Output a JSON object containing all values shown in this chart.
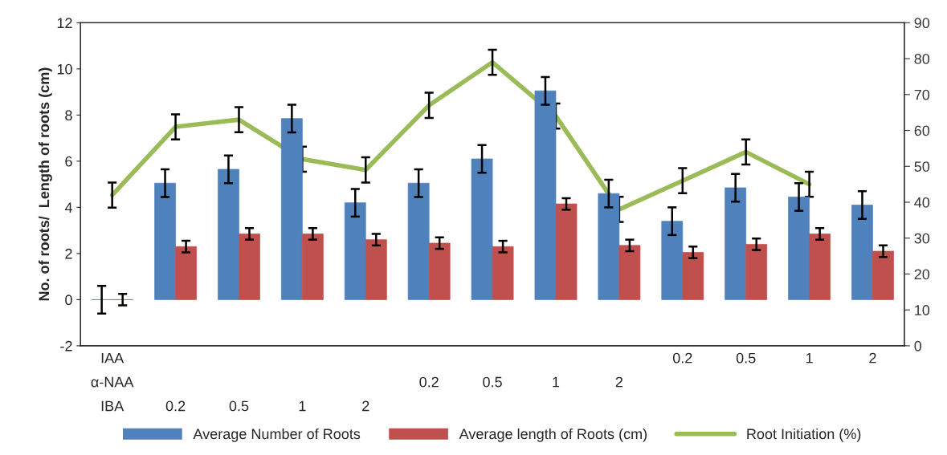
{
  "chart_data": {
    "type": "bar",
    "categories": [
      "IAA\nα-NAA\nIBA",
      "\n\n0.2",
      "\n\n0.5",
      "\n\n1",
      "\n\n2",
      "\n0.2\n",
      "\n0.5\n",
      "\n1\n",
      "\n2\n",
      "0.2\n\n",
      "0.5\n\n",
      "1\n\n",
      "2\n\n"
    ],
    "ylabel": "No. of roots/  Length of roots (cm)",
    "series": [
      {
        "name": "Average Number of Roots",
        "color": "#4f81bd",
        "values": [
          0,
          5.05,
          5.65,
          7.85,
          4.2,
          5.05,
          6.1,
          9.05,
          4.6,
          3.4,
          4.85,
          4.45,
          4.1
        ],
        "errors": [
          0.6,
          0.6,
          0.6,
          0.6,
          0.6,
          0.6,
          0.6,
          0.6,
          0.6,
          0.6,
          0.6,
          0.6,
          0.6
        ]
      },
      {
        "name": "Average length of Roots (cm)",
        "color": "#c0504d",
        "values": [
          0,
          2.3,
          2.85,
          2.85,
          2.6,
          2.45,
          2.3,
          4.15,
          2.35,
          2.05,
          2.4,
          2.85,
          2.1
        ],
        "errors": [
          0.25,
          0.25,
          0.25,
          0.25,
          0.25,
          0.25,
          0.25,
          0.25,
          0.25,
          0.25,
          0.25,
          0.25,
          0.25
        ]
      },
      {
        "name": "Root Initiation (%)",
        "type": "line",
        "axis": "y2",
        "color": "#9bbb59",
        "values": [
          42,
          61,
          63,
          52,
          49,
          67,
          79,
          64,
          38,
          46,
          54,
          45,
          null
        ],
        "errors": [
          3.5,
          3.5,
          3.5,
          3.5,
          3.5,
          3.5,
          3.5,
          3.5,
          3.5,
          3.5,
          3.5,
          3.5,
          null
        ]
      }
    ],
    "ylim": [
      -2,
      12
    ],
    "yticks": [
      -2,
      0,
      2,
      4,
      6,
      8,
      10,
      12
    ],
    "y2lim": [
      0,
      90
    ],
    "y2ticks": [
      0,
      10,
      20,
      30,
      40,
      50,
      60,
      70,
      80,
      90
    ],
    "grid": false,
    "legend": "bottom"
  }
}
